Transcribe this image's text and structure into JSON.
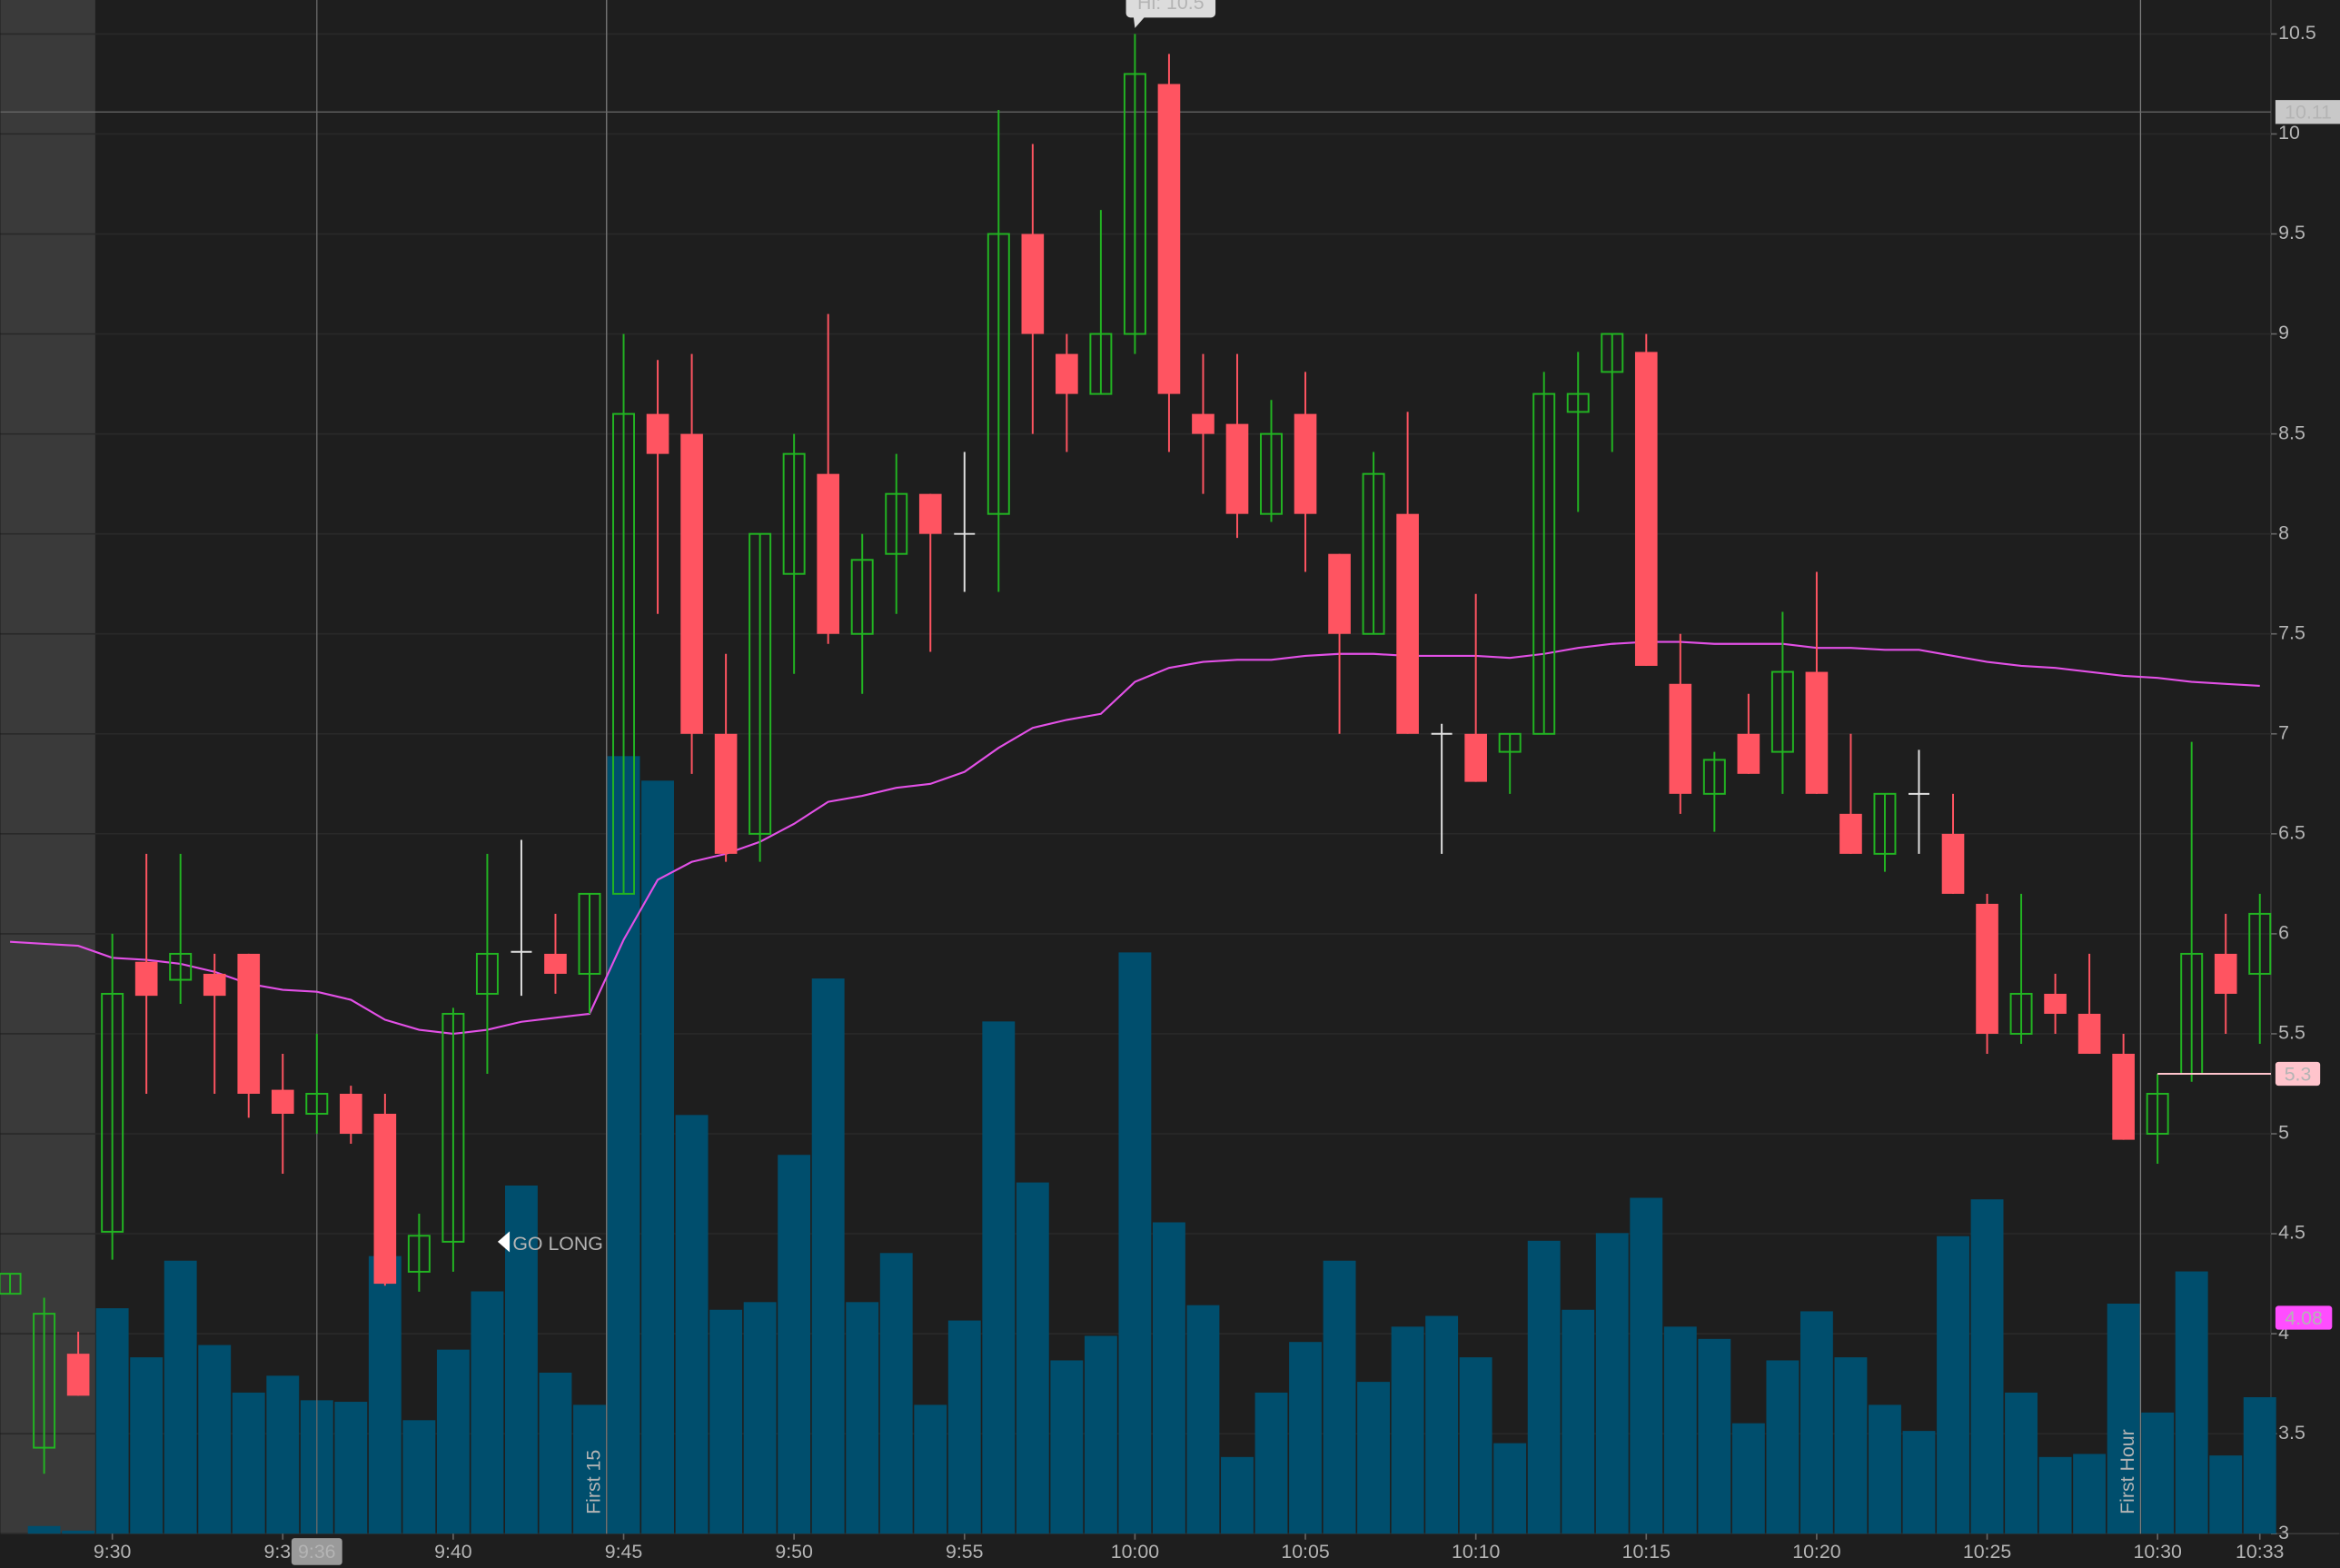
{
  "chart_data": {
    "type": "candlestick",
    "categories": [
      null,
      null,
      null,
      "9:30",
      null,
      null,
      null,
      null,
      "9:35",
      null,
      null,
      null,
      null,
      "9:40",
      null,
      null,
      null,
      null,
      "9:45",
      null,
      null,
      null,
      null,
      "9:50",
      null,
      null,
      null,
      null,
      "9:55",
      null,
      null,
      null,
      null,
      "10:00",
      null,
      null,
      null,
      null,
      "10:05",
      null,
      null,
      null,
      null,
      "10:10",
      null,
      null,
      null,
      null,
      "10:15",
      null,
      null,
      null,
      null,
      "10:20",
      null,
      null,
      null,
      null,
      "10:25",
      null,
      null,
      null,
      null,
      "10:30",
      null,
      null,
      "10:33"
    ],
    "open": [
      4.2,
      3.43,
      3.9,
      4.51,
      5.86,
      5.77,
      5.8,
      5.9,
      5.22,
      5.1,
      5.2,
      5.1,
      4.31,
      4.46,
      5.7,
      5.91,
      5.9,
      5.8,
      6.2,
      8.6,
      8.5,
      7.0,
      6.5,
      7.8,
      8.3,
      7.5,
      7.9,
      8.2,
      8.0,
      8.1,
      9.5,
      8.9,
      8.7,
      9.0,
      10.25,
      8.6,
      8.55,
      8.1,
      8.6,
      7.9,
      7.5,
      8.1,
      7.0,
      7.0,
      6.91,
      7.0,
      8.61,
      8.81,
      8.91,
      7.25,
      6.7,
      7.0,
      6.91,
      7.31,
      6.6,
      6.4,
      6.7,
      6.5,
      6.15,
      5.5,
      5.7,
      5.6,
      5.4,
      5.0,
      5.3,
      5.9,
      5.8
    ],
    "high": [
      4.3,
      4.18,
      4.01,
      6.0,
      6.4,
      6.4,
      5.9,
      5.9,
      5.4,
      5.5,
      5.24,
      5.2,
      4.6,
      5.63,
      6.4,
      6.47,
      6.1,
      6.2,
      9.0,
      8.87,
      8.9,
      7.4,
      8.0,
      8.5,
      9.1,
      8.0,
      8.4,
      8.2,
      8.41,
      10.12,
      9.95,
      9.0,
      9.62,
      10.5,
      10.4,
      8.9,
      8.9,
      8.67,
      8.81,
      7.9,
      8.41,
      8.61,
      7.05,
      7.7,
      7.0,
      8.81,
      8.91,
      9.0,
      9.0,
      7.5,
      6.91,
      7.2,
      7.61,
      7.81,
      7.0,
      6.7,
      6.92,
      6.7,
      6.2,
      6.2,
      5.8,
      5.9,
      5.5,
      5.3,
      6.96,
      6.1,
      6.2
    ],
    "low": [
      4.2,
      3.3,
      3.69,
      4.37,
      5.2,
      5.65,
      5.2,
      5.08,
      4.8,
      5.0,
      4.95,
      4.24,
      4.21,
      4.31,
      5.3,
      5.69,
      5.7,
      5.6,
      6.2,
      7.6,
      6.8,
      6.36,
      6.36,
      7.3,
      7.45,
      7.2,
      7.6,
      7.41,
      7.71,
      7.71,
      8.5,
      8.41,
      8.7,
      8.9,
      8.41,
      8.2,
      7.98,
      8.06,
      7.81,
      7.0,
      7.5,
      7.0,
      6.4,
      6.76,
      6.7,
      7.0,
      8.11,
      8.41,
      7.34,
      6.6,
      6.51,
      6.8,
      6.7,
      6.7,
      6.4,
      6.31,
      6.4,
      6.2,
      5.4,
      5.45,
      5.5,
      5.4,
      4.97,
      4.85,
      5.26,
      5.5,
      5.45
    ],
    "close": [
      4.3,
      4.1,
      3.69,
      5.7,
      5.69,
      5.9,
      5.69,
      5.2,
      5.1,
      5.2,
      5.0,
      4.25,
      4.49,
      5.6,
      5.9,
      5.91,
      5.8,
      6.2,
      8.6,
      8.4,
      7.0,
      6.4,
      8.0,
      8.4,
      7.5,
      7.87,
      8.2,
      8.0,
      8.0,
      9.5,
      9.0,
      8.7,
      9.0,
      10.3,
      8.7,
      8.5,
      8.1,
      8.5,
      8.1,
      7.5,
      8.3,
      7.0,
      7.0,
      6.76,
      7.0,
      8.7,
      8.7,
      9.0,
      7.34,
      6.7,
      6.87,
      6.8,
      7.31,
      6.7,
      6.4,
      6.7,
      6.7,
      6.2,
      5.5,
      5.7,
      5.6,
      5.4,
      4.97,
      5.2,
      5.9,
      5.7,
      6.1
    ],
    "volume": [
      0,
      5,
      2,
      147,
      115,
      178,
      123,
      92,
      103,
      87,
      86,
      181,
      74,
      120,
      158,
      227,
      105,
      84,
      507,
      491,
      273,
      146,
      151,
      247,
      362,
      151,
      183,
      84,
      139,
      334,
      229,
      113,
      129,
      379,
      203,
      149,
      50,
      92,
      125,
      178,
      99,
      135,
      142,
      115,
      59,
      191,
      146,
      196,
      219,
      135,
      127,
      72,
      113,
      145,
      115,
      84,
      67,
      194,
      218,
      92,
      50,
      52,
      150,
      79,
      171,
      51,
      89
    ],
    "vwap": [
      5.96,
      5.95,
      5.94,
      5.88,
      5.87,
      5.85,
      5.81,
      5.75,
      5.72,
      5.71,
      5.67,
      5.57,
      5.52,
      5.5,
      5.52,
      5.56,
      5.58,
      5.6,
      5.97,
      6.27,
      6.36,
      6.4,
      6.46,
      6.55,
      6.66,
      6.69,
      6.73,
      6.75,
      6.81,
      6.93,
      7.03,
      7.07,
      7.1,
      7.26,
      7.33,
      7.36,
      7.37,
      7.37,
      7.39,
      7.4,
      7.4,
      7.39,
      7.39,
      7.39,
      7.38,
      7.4,
      7.43,
      7.45,
      7.46,
      7.46,
      7.45,
      7.45,
      7.45,
      7.43,
      7.43,
      7.42,
      7.42,
      7.39,
      7.36,
      7.34,
      7.33,
      7.31,
      7.29,
      7.28,
      7.26,
      7.25,
      7.24
    ],
    "ylim": [
      3,
      10.67
    ],
    "yticks": [
      10.5,
      10,
      9.5,
      9,
      8.5,
      8,
      7.5,
      7,
      6.5,
      6,
      5.5,
      5,
      4.5,
      4,
      3.5,
      3
    ],
    "vlim": [
      0,
      1000
    ],
    "grid": true,
    "premarket_shading": true,
    "colors": {
      "up": "#22b422",
      "down": "#ff5461",
      "doji": "#e0e0e0",
      "volume": "#004e6d",
      "vwap": "#e250e6"
    },
    "crosshair": {
      "x": "9:36",
      "y": 10.11
    },
    "session_lines": [
      {
        "label": "First 15",
        "at": "9:45"
      },
      {
        "label": "First Hour",
        "at": "10:30"
      }
    ],
    "levels": [
      {
        "value": 5.3,
        "from": "10:30",
        "color": "#ffc4cc"
      }
    ],
    "study_labels": [
      {
        "value": 4.08,
        "color": "#ff4dff"
      }
    ],
    "high_marker": {
      "value": 10.5,
      "label": "Hi: 10.5",
      "at": "10:00"
    },
    "annotations": [
      {
        "text": "GO LONG",
        "at": "9:41",
        "price": 4.46
      }
    ]
  }
}
